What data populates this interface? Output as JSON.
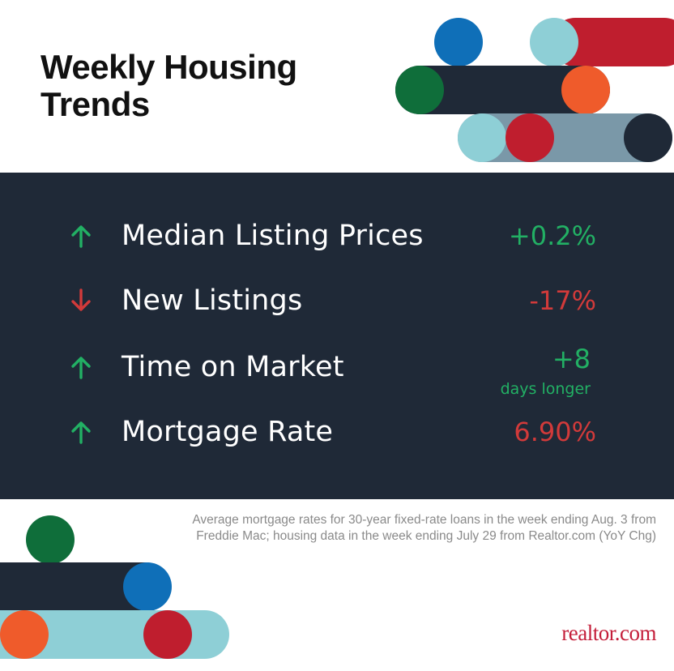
{
  "title": "Weekly Housing Trends",
  "colors": {
    "panel": "#1f2937",
    "up": "#22b064",
    "down": "#d23a3a",
    "brand_red": "#c41e3a",
    "blue": "#0f6fb8",
    "light_teal": "#8ecfd6",
    "green": "#0f6e3a",
    "orange": "#ef5b2b",
    "slate": "#7a98a8"
  },
  "metrics": [
    {
      "label": "Median Listing Prices",
      "value": "+0.2%",
      "sub": "",
      "direction": "up",
      "icon": "arrow-up-icon"
    },
    {
      "label": "New Listings",
      "value": "-17%",
      "sub": "",
      "direction": "down",
      "icon": "arrow-down-icon"
    },
    {
      "label": "Time on Market",
      "value": "+8",
      "sub": "days longer",
      "direction": "up",
      "icon": "arrow-up-icon"
    },
    {
      "label": "Mortgage Rate",
      "value": "6.90%",
      "sub": "",
      "direction": "up",
      "icon": "arrow-up-icon"
    }
  ],
  "footnote": "Average mortgage rates for 30-year fixed-rate loans in the week ending Aug. 3 from Freddie Mac; housing data in the week ending July 29 from Realtor.com (YoY Chg)",
  "logo": {
    "text": "realtor.com"
  }
}
